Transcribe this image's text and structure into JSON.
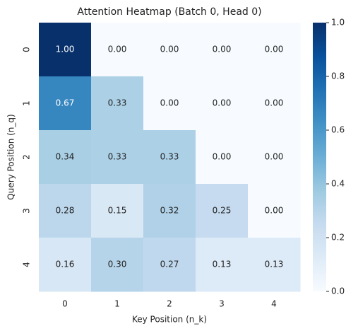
{
  "chart_data": {
    "type": "heatmap",
    "title": "Attention Heatmap (Batch 0, Head 0)",
    "x_label": "Key Position (n_k)",
    "y_label": "Query Position (n_q)",
    "categories": [
      "0",
      "1",
      "2",
      "3",
      "4"
    ],
    "y_categories": [
      "0",
      "1",
      "2",
      "3",
      "4"
    ],
    "values": [
      [
        1,
        0,
        0,
        0,
        0
      ],
      [
        0.67,
        0.33,
        0,
        0,
        0
      ],
      [
        0.34,
        0.33,
        0.33,
        0,
        0
      ],
      [
        0.28,
        0.15,
        0.32,
        0.25,
        0
      ],
      [
        0.16,
        0.3,
        0.27,
        0.13,
        0.13
      ]
    ],
    "value_labels": [
      [
        "1.00",
        "0.00",
        "0.00",
        "0.00",
        "0.00"
      ],
      [
        "0.67",
        "0.33",
        "0.00",
        "0.00",
        "0.00"
      ],
      [
        "0.34",
        "0.33",
        "0.33",
        "0.00",
        "0.00"
      ],
      [
        "0.28",
        "0.15",
        "0.32",
        "0.25",
        "0.00"
      ],
      [
        "0.16",
        "0.30",
        "0.27",
        "0.13",
        "0.13"
      ]
    ],
    "colormap": "Blues",
    "clim": [
      0,
      1
    ],
    "cticks": [
      {
        "value": 0,
        "label": "0.0"
      },
      0.2,
      0.4,
      0.6,
      0.8,
      {
        "value": 1,
        "label": "1.0"
      }
    ]
  }
}
